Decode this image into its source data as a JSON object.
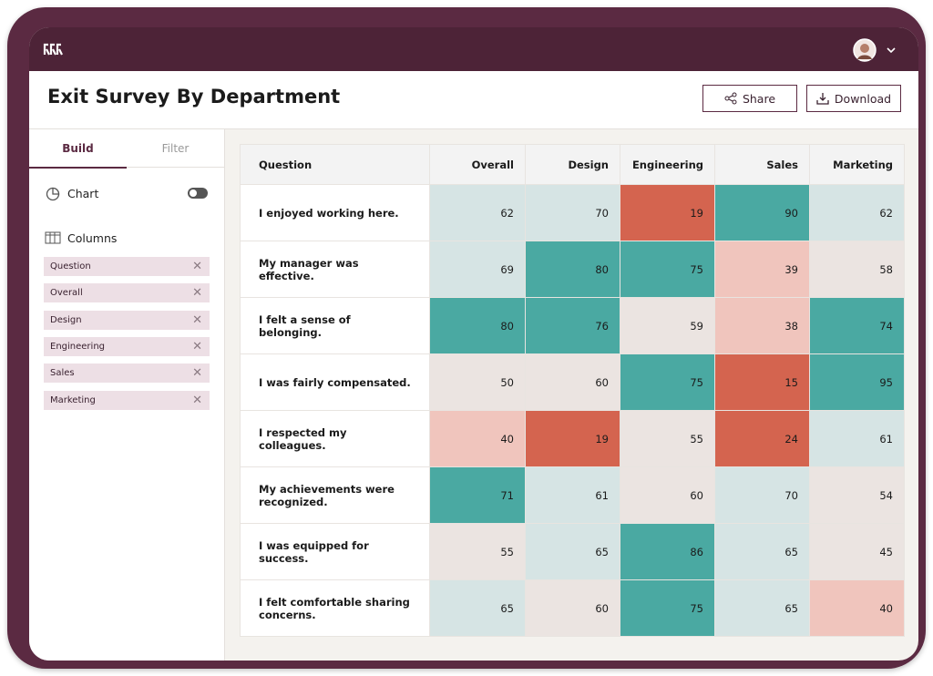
{
  "header": {
    "title": "Exit Survey By Department",
    "buttons": [
      "Share",
      "Download"
    ]
  },
  "sidebar": {
    "tabs": [
      "Build",
      "Filter"
    ],
    "chart_label": "Chart",
    "columns_label": "Columns",
    "columns": [
      "Question",
      "Overall",
      "Design",
      "Engineering",
      "Sales",
      "Marketing"
    ]
  },
  "table": {
    "columns": [
      "Question",
      "Overall",
      "Design",
      "Engineering",
      "Sales",
      "Marketing"
    ],
    "rows": [
      [
        "I enjoyed working here.",
        62,
        70,
        19,
        90,
        62
      ],
      [
        "My manager was effective.",
        69,
        80,
        75,
        39,
        58
      ],
      [
        "I felt a sense of belonging.",
        80,
        76,
        59,
        38,
        74
      ],
      [
        "I was fairly compensated.",
        50,
        60,
        75,
        15,
        95
      ],
      [
        "I respected my colleagues.",
        40,
        19,
        55,
        24,
        61
      ],
      [
        "My achievements were recognized.",
        71,
        61,
        60,
        70,
        54
      ],
      [
        "I was equipped for success.",
        55,
        65,
        86,
        65,
        45
      ],
      [
        "I felt comfortable sharing concerns.",
        65,
        60,
        75,
        65,
        40
      ]
    ]
  },
  "colors": [
    "#d4644f",
    "#f0c5bd",
    "#ebe4e1",
    "#d6e4e4",
    "#4aa9a2"
  ]
}
